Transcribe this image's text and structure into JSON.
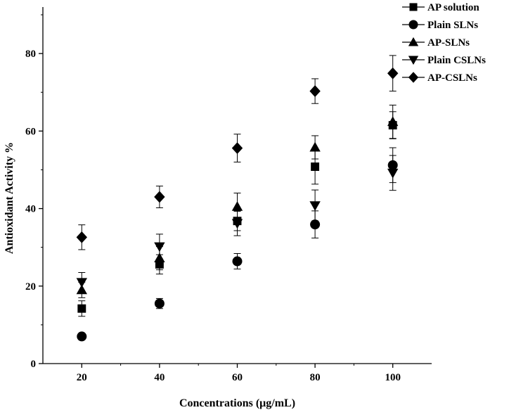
{
  "chart_data": {
    "type": "scatter",
    "xlabel": "Concentrations (μg/mL)",
    "ylabel": "Antioxidant Activity %",
    "xlim": [
      10,
      110
    ],
    "ylim": [
      0,
      92
    ],
    "x_ticks": [
      "20",
      "40",
      "60",
      "80",
      "100"
    ],
    "y_ticks": [
      "0",
      "20",
      "40",
      "60",
      "80"
    ],
    "grid": false,
    "legend_position": "top-right",
    "x": [
      20,
      40,
      60,
      80,
      100
    ],
    "series": [
      {
        "name": "AP solution",
        "marker": "square",
        "values": [
          14.2,
          25.6,
          36.8,
          50.8,
          61.5
        ],
        "errors": [
          2.0,
          2.5,
          2.5,
          4.5,
          3.5
        ]
      },
      {
        "name": "Plain SLNs",
        "marker": "circle",
        "values": [
          7.0,
          15.5,
          26.4,
          35.9,
          51.2
        ],
        "errors": [
          0.8,
          1.3,
          2.0,
          3.5,
          4.5
        ]
      },
      {
        "name": "AP-SLNs",
        "marker": "triangle-up",
        "values": [
          19.0,
          27.2,
          40.5,
          55.8,
          62.4
        ],
        "errors": [
          2.0,
          3.0,
          3.5,
          3.0,
          4.3
        ]
      },
      {
        "name": "Plain CSLNs",
        "marker": "triangle-down",
        "values": [
          21.0,
          30.2,
          36.2,
          40.8,
          49.2
        ],
        "errors": [
          2.5,
          3.2,
          3.2,
          4.0,
          4.5
        ]
      },
      {
        "name": "AP-CSLNs",
        "marker": "diamond",
        "values": [
          32.6,
          43.0,
          55.6,
          70.3,
          74.9
        ],
        "errors": [
          3.2,
          2.8,
          3.6,
          3.2,
          4.6
        ]
      }
    ]
  }
}
